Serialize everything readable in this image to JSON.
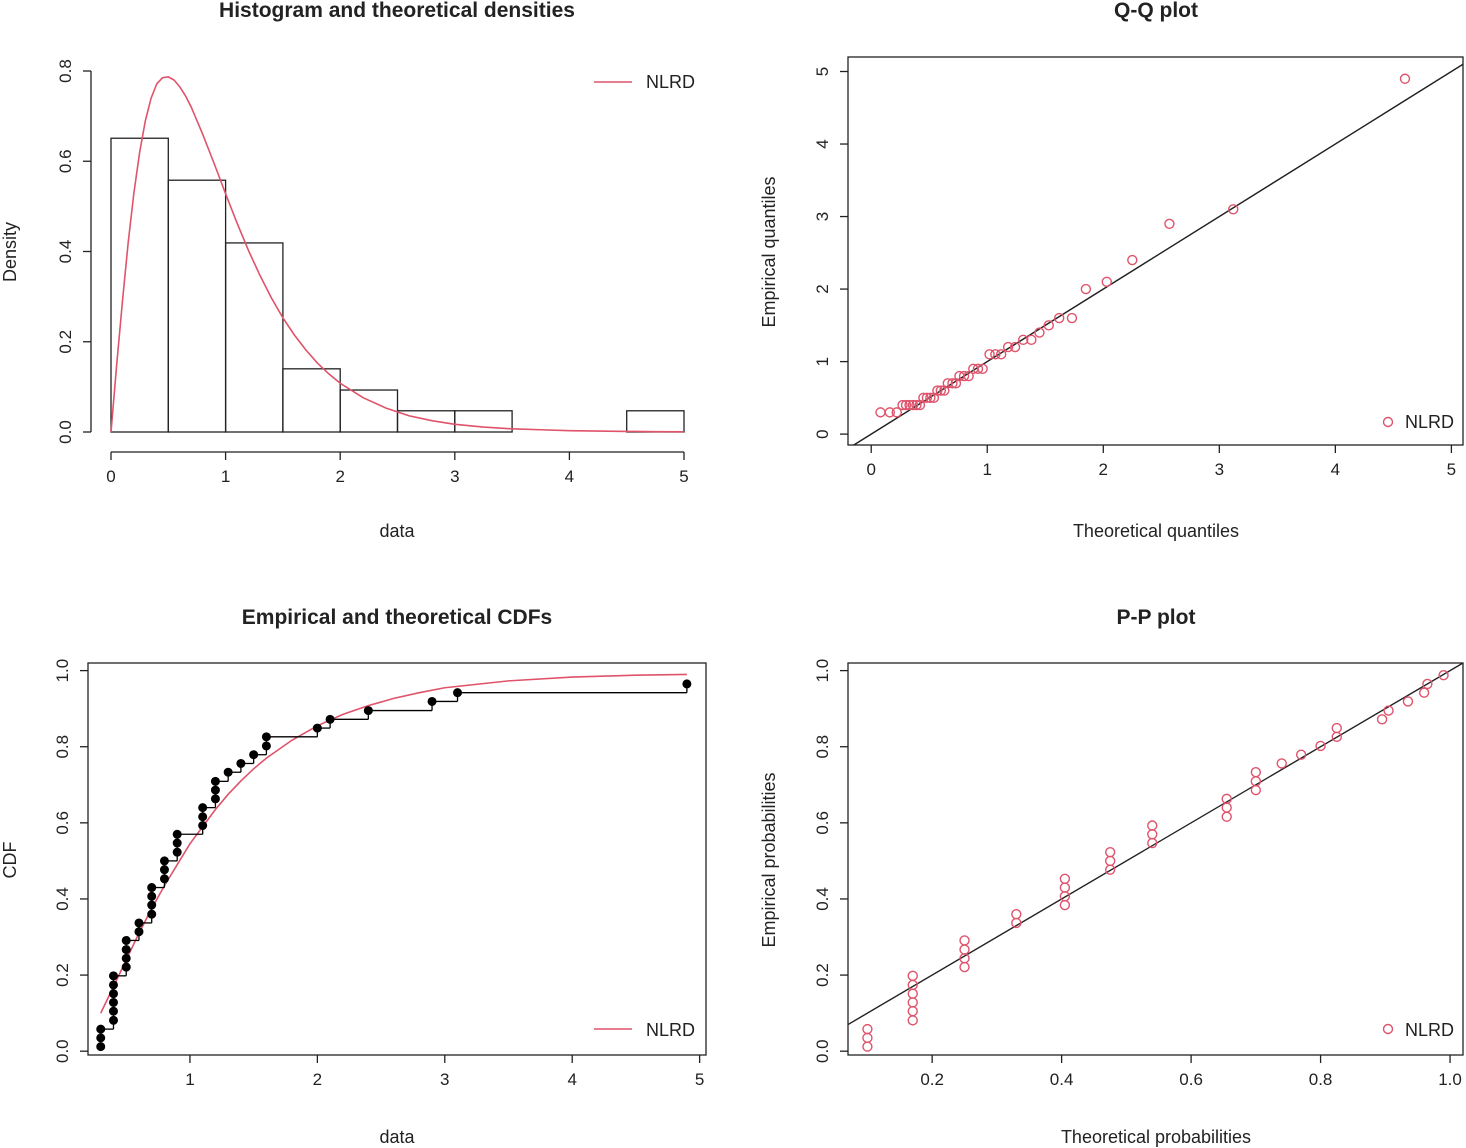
{
  "figure": {
    "colors": {
      "theoretical": "#DF536B",
      "empirical": "#000000",
      "axis": "#222222"
    }
  },
  "chart_data": [
    {
      "id": "hist",
      "type": "bar",
      "title": "Histogram and theoretical densities",
      "xlabel": "data",
      "ylabel": "Density",
      "xlim": [
        0,
        5
      ],
      "ylim": [
        0,
        0.8
      ],
      "xticks": [
        0,
        1,
        2,
        3,
        4,
        5
      ],
      "yticks": [
        0.0,
        0.2,
        0.4,
        0.6,
        0.8
      ],
      "ytick_labels": [
        "0.0",
        "0.2",
        "0.4",
        "0.6",
        "0.8"
      ],
      "bin_edges": [
        0,
        0.5,
        1,
        1.5,
        2,
        2.5,
        3,
        3.5,
        4,
        4.5,
        5
      ],
      "values": [
        0.651,
        0.558,
        0.419,
        0.14,
        0.093,
        0.047,
        0.047,
        0,
        0,
        0.047
      ],
      "series": [
        {
          "name": "NLRD",
          "color": "#DF536B",
          "x": [
            0,
            0.05,
            0.1,
            0.15,
            0.2,
            0.25,
            0.3,
            0.35,
            0.4,
            0.45,
            0.5,
            0.55,
            0.6,
            0.65,
            0.7,
            0.8,
            0.9,
            1.0,
            1.1,
            1.2,
            1.3,
            1.4,
            1.5,
            1.6,
            1.7,
            1.8,
            1.9,
            2.0,
            2.2,
            2.4,
            2.6,
            2.8,
            3.0,
            3.25,
            3.5,
            3.75,
            4.0,
            4.25,
            4.5,
            4.75,
            5.0
          ],
          "y": [
            0,
            0.15,
            0.29,
            0.42,
            0.53,
            0.62,
            0.69,
            0.74,
            0.772,
            0.785,
            0.787,
            0.78,
            0.765,
            0.745,
            0.72,
            0.66,
            0.595,
            0.528,
            0.463,
            0.402,
            0.347,
            0.297,
            0.253,
            0.215,
            0.182,
            0.153,
            0.129,
            0.108,
            0.076,
            0.053,
            0.036,
            0.025,
            0.017,
            0.011,
            0.007,
            0.005,
            0.003,
            0.002,
            0.0013,
            0.0008,
            0.0005
          ]
        }
      ],
      "legend": {
        "position": "top-right",
        "entries": [
          "NLRD"
        ]
      }
    },
    {
      "id": "qq",
      "type": "scatter",
      "title": "Q-Q plot",
      "xlabel": "Theoretical quantiles",
      "ylabel": "Empirical quantiles",
      "xlim": [
        -0.2,
        5.1
      ],
      "ylim": [
        -0.15,
        5.2
      ],
      "xticks": [
        0,
        1,
        2,
        3,
        4,
        5
      ],
      "yticks": [
        0,
        1,
        2,
        3,
        4,
        5
      ],
      "reference_line": "y = x",
      "series": [
        {
          "name": "NLRD",
          "color": "#DF536B",
          "x": [
            0.08,
            0.16,
            0.22,
            0.27,
            0.3,
            0.33,
            0.36,
            0.39,
            0.42,
            0.45,
            0.48,
            0.51,
            0.54,
            0.57,
            0.6,
            0.63,
            0.66,
            0.7,
            0.73,
            0.76,
            0.8,
            0.84,
            0.88,
            0.92,
            0.96,
            1.02,
            1.07,
            1.12,
            1.18,
            1.24,
            1.31,
            1.38,
            1.45,
            1.53,
            1.62,
            1.73,
            1.85,
            2.03,
            2.25,
            2.57,
            3.12,
            4.6
          ],
          "y": [
            0.3,
            0.3,
            0.3,
            0.4,
            0.4,
            0.4,
            0.4,
            0.4,
            0.4,
            0.5,
            0.5,
            0.5,
            0.5,
            0.6,
            0.6,
            0.6,
            0.7,
            0.7,
            0.7,
            0.8,
            0.8,
            0.8,
            0.9,
            0.9,
            0.9,
            1.1,
            1.1,
            1.1,
            1.2,
            1.2,
            1.3,
            1.3,
            1.4,
            1.5,
            1.6,
            1.6,
            2.0,
            2.1,
            2.4,
            2.9,
            3.1,
            4.9
          ]
        }
      ],
      "legend": {
        "position": "bottom-right",
        "entries": [
          "NLRD"
        ]
      }
    },
    {
      "id": "cdf",
      "type": "line",
      "title": "Empirical and theoretical CDFs",
      "xlabel": "data",
      "ylabel": "CDF",
      "xlim": [
        0.2,
        5.05
      ],
      "ylim": [
        -0.01,
        1.02
      ],
      "xticks": [
        1,
        2,
        3,
        4,
        5
      ],
      "yticks": [
        0.0,
        0.2,
        0.4,
        0.6,
        0.8,
        1.0
      ],
      "ytick_labels": [
        "0.0",
        "0.2",
        "0.4",
        "0.6",
        "0.8",
        "1.0"
      ],
      "empirical_points": {
        "x": [
          0.3,
          0.3,
          0.3,
          0.4,
          0.4,
          0.4,
          0.4,
          0.4,
          0.4,
          0.5,
          0.5,
          0.5,
          0.5,
          0.6,
          0.6,
          0.7,
          0.7,
          0.7,
          0.7,
          0.8,
          0.8,
          0.8,
          0.9,
          0.9,
          0.9,
          1.1,
          1.1,
          1.1,
          1.2,
          1.2,
          1.2,
          1.3,
          1.4,
          1.5,
          1.6,
          1.6,
          2.0,
          2.1,
          2.4,
          2.9,
          3.1,
          4.9
        ],
        "y": [
          0.012,
          0.035,
          0.058,
          0.081,
          0.105,
          0.128,
          0.151,
          0.174,
          0.198,
          0.221,
          0.244,
          0.267,
          0.291,
          0.314,
          0.337,
          0.36,
          0.384,
          0.407,
          0.43,
          0.453,
          0.477,
          0.5,
          0.523,
          0.547,
          0.57,
          0.593,
          0.616,
          0.64,
          0.663,
          0.686,
          0.709,
          0.733,
          0.756,
          0.779,
          0.802,
          0.826,
          0.849,
          0.872,
          0.895,
          0.919,
          0.942,
          0.965
        ]
      },
      "series": [
        {
          "name": "NLRD",
          "color": "#DF536B",
          "x": [
            0.3,
            0.4,
            0.5,
            0.6,
            0.7,
            0.8,
            0.9,
            1.0,
            1.1,
            1.2,
            1.3,
            1.4,
            1.5,
            1.6,
            1.8,
            2.0,
            2.2,
            2.4,
            2.6,
            2.8,
            3.0,
            3.5,
            4.0,
            4.5,
            4.9
          ],
          "y": [
            0.1,
            0.17,
            0.24,
            0.31,
            0.375,
            0.435,
            0.49,
            0.545,
            0.59,
            0.635,
            0.675,
            0.71,
            0.742,
            0.77,
            0.817,
            0.855,
            0.885,
            0.908,
            0.927,
            0.942,
            0.955,
            0.973,
            0.983,
            0.988,
            0.99
          ]
        }
      ],
      "legend": {
        "position": "bottom-right",
        "entries": [
          "NLRD"
        ]
      }
    },
    {
      "id": "pp",
      "type": "scatter",
      "title": "P-P plot",
      "xlabel": "Theoretical probabilities",
      "ylabel": "Empirical probabilities",
      "xlim": [
        0.07,
        1.02
      ],
      "ylim": [
        -0.01,
        1.02
      ],
      "xticks": [
        0.2,
        0.4,
        0.6,
        0.8,
        1.0
      ],
      "xtick_labels": [
        "0.2",
        "0.4",
        "0.6",
        "0.8",
        "1.0"
      ],
      "yticks": [
        0.0,
        0.2,
        0.4,
        0.6,
        0.8,
        1.0
      ],
      "ytick_labels": [
        "0.0",
        "0.2",
        "0.4",
        "0.6",
        "0.8",
        "1.0"
      ],
      "reference_line": "y = x",
      "series": [
        {
          "name": "NLRD",
          "color": "#DF536B",
          "x": [
            0.1,
            0.1,
            0.1,
            0.17,
            0.17,
            0.17,
            0.17,
            0.17,
            0.17,
            0.25,
            0.25,
            0.25,
            0.25,
            0.33,
            0.33,
            0.405,
            0.405,
            0.405,
            0.405,
            0.475,
            0.475,
            0.475,
            0.54,
            0.54,
            0.54,
            0.655,
            0.655,
            0.655,
            0.7,
            0.7,
            0.7,
            0.74,
            0.77,
            0.8,
            0.825,
            0.825,
            0.895,
            0.905,
            0.935,
            0.96,
            0.965,
            0.99
          ],
          "y": [
            0.012,
            0.035,
            0.058,
            0.081,
            0.105,
            0.128,
            0.151,
            0.174,
            0.198,
            0.221,
            0.244,
            0.267,
            0.291,
            0.337,
            0.36,
            0.384,
            0.407,
            0.43,
            0.453,
            0.477,
            0.5,
            0.523,
            0.547,
            0.57,
            0.593,
            0.616,
            0.64,
            0.663,
            0.686,
            0.709,
            0.733,
            0.756,
            0.779,
            0.802,
            0.826,
            0.849,
            0.872,
            0.895,
            0.919,
            0.942,
            0.965,
            0.988
          ]
        }
      ],
      "legend": {
        "position": "bottom-right",
        "entries": [
          "NLRD"
        ]
      }
    }
  ]
}
